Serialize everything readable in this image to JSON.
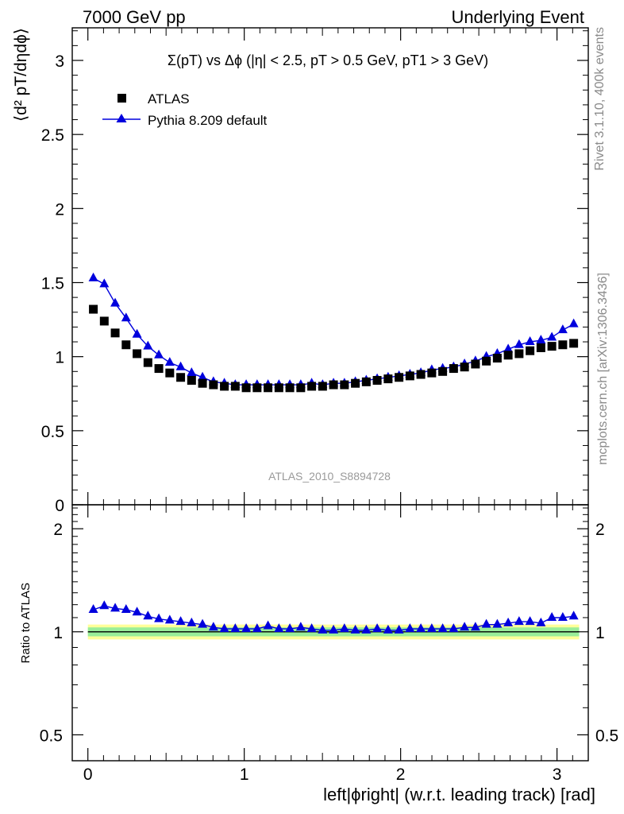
{
  "header": {
    "left": "7000 GeV pp",
    "right": "Underlying Event"
  },
  "side_text": {
    "rivet": "Rivet 3.1.10,  400k events",
    "mcplots": "mcplots.cern.ch [arXiv:1306.3436]"
  },
  "chart_data": [
    {
      "type": "scatter",
      "panel": "main",
      "title": "Σ(pT) vs Δϕ (|η| < 2.5, pT > 0.5 GeV, pT1 > 3 GeV)",
      "ylabel": "⟨d² pT/dηdϕ⟩",
      "xlabel": "",
      "watermark": "ATLAS_2010_S8894728",
      "xlim": [
        -0.1,
        3.2
      ],
      "ylim": [
        0,
        3.22
      ],
      "y_ticks": [
        0,
        0.5,
        1,
        1.5,
        2,
        2.5,
        3
      ],
      "y_tick_labels": [
        "0",
        "0.5",
        "1",
        "1.5",
        "2",
        "2.5",
        "3"
      ],
      "legend_position": "top-left",
      "series": [
        {
          "name": "ATLAS",
          "marker": "square",
          "color": "#000000",
          "x": [
            0.0349,
            0.1047,
            0.1745,
            0.2443,
            0.3142,
            0.384,
            0.4538,
            0.5236,
            0.5934,
            0.6632,
            0.733,
            0.8029,
            0.8727,
            0.9425,
            1.0123,
            1.0821,
            1.1519,
            1.2217,
            1.2915,
            1.3614,
            1.4312,
            1.501,
            1.5708,
            1.6406,
            1.7104,
            1.7802,
            1.85,
            1.9199,
            1.9897,
            2.0595,
            2.1293,
            2.1991,
            2.2689,
            2.3387,
            2.4086,
            2.4784,
            2.5482,
            2.618,
            2.6878,
            2.7576,
            2.8274,
            2.8972,
            2.9671,
            3.0369,
            3.1067
          ],
          "y": [
            1.32,
            1.24,
            1.16,
            1.08,
            1.02,
            0.96,
            0.92,
            0.89,
            0.86,
            0.84,
            0.82,
            0.81,
            0.8,
            0.8,
            0.79,
            0.79,
            0.79,
            0.79,
            0.79,
            0.79,
            0.8,
            0.8,
            0.81,
            0.81,
            0.82,
            0.83,
            0.84,
            0.85,
            0.86,
            0.87,
            0.88,
            0.89,
            0.9,
            0.92,
            0.93,
            0.95,
            0.97,
            0.99,
            1.01,
            1.02,
            1.04,
            1.06,
            1.07,
            1.08,
            1.09
          ]
        },
        {
          "name": "Pythia 8.209 default",
          "marker": "triangle",
          "color": "#0000dd",
          "x": [
            0.0349,
            0.1047,
            0.1745,
            0.2443,
            0.3142,
            0.384,
            0.4538,
            0.5236,
            0.5934,
            0.6632,
            0.733,
            0.8029,
            0.8727,
            0.9425,
            1.0123,
            1.0821,
            1.1519,
            1.2217,
            1.2915,
            1.3614,
            1.4312,
            1.501,
            1.5708,
            1.6406,
            1.7104,
            1.7802,
            1.85,
            1.9199,
            1.9897,
            2.0595,
            2.1293,
            2.1991,
            2.2689,
            2.3387,
            2.4086,
            2.4784,
            2.5482,
            2.618,
            2.6878,
            2.7576,
            2.8274,
            2.8972,
            2.9671,
            3.0369,
            3.1067
          ],
          "y": [
            1.53,
            1.49,
            1.36,
            1.26,
            1.15,
            1.07,
            1.01,
            0.96,
            0.93,
            0.89,
            0.86,
            0.83,
            0.82,
            0.81,
            0.81,
            0.81,
            0.81,
            0.81,
            0.81,
            0.81,
            0.82,
            0.81,
            0.82,
            0.82,
            0.83,
            0.84,
            0.85,
            0.86,
            0.87,
            0.88,
            0.89,
            0.91,
            0.92,
            0.93,
            0.95,
            0.97,
            1.0,
            1.02,
            1.05,
            1.08,
            1.1,
            1.11,
            1.13,
            1.18,
            1.22
          ]
        }
      ]
    },
    {
      "type": "scatter",
      "panel": "ratio",
      "ylabel": "Ratio to ATLAS",
      "xlabel": "left|ϕright| (w.r.t. leading track) [rad]",
      "xlim": [
        -0.1,
        3.2
      ],
      "ylim": [
        0.5,
        2.0
      ],
      "y_scale": "log",
      "y_ticks": [
        0.5,
        1,
        2
      ],
      "y_tick_labels": [
        "0.5",
        "1",
        "2"
      ],
      "x_ticks": [
        0,
        1,
        2,
        3
      ],
      "x_tick_labels": [
        "0",
        "1",
        "2",
        "3"
      ],
      "bands": [
        {
          "low": 0.95,
          "high": 1.05,
          "color": "#ffff99"
        },
        {
          "low": 0.97,
          "high": 1.03,
          "color": "#99ee99"
        }
      ],
      "series": [
        {
          "name": "Pythia 8.209 default",
          "marker": "triangle",
          "color": "#0000dd",
          "x": [
            0.0349,
            0.1047,
            0.1745,
            0.2443,
            0.3142,
            0.384,
            0.4538,
            0.5236,
            0.5934,
            0.6632,
            0.733,
            0.8029,
            0.8727,
            0.9425,
            1.0123,
            1.0821,
            1.1519,
            1.2217,
            1.2915,
            1.3614,
            1.4312,
            1.501,
            1.5708,
            1.6406,
            1.7104,
            1.7802,
            1.85,
            1.9199,
            1.9897,
            2.0595,
            2.1293,
            2.1991,
            2.2689,
            2.3387,
            2.4086,
            2.4784,
            2.5482,
            2.618,
            2.6878,
            2.7576,
            2.8274,
            2.8972,
            2.9671,
            3.0369,
            3.1067
          ],
          "y": [
            1.16,
            1.19,
            1.17,
            1.16,
            1.14,
            1.11,
            1.09,
            1.08,
            1.07,
            1.06,
            1.05,
            1.03,
            1.02,
            1.02,
            1.02,
            1.02,
            1.04,
            1.02,
            1.02,
            1.03,
            1.02,
            1.01,
            1.01,
            1.02,
            1.01,
            1.01,
            1.02,
            1.01,
            1.01,
            1.02,
            1.02,
            1.02,
            1.02,
            1.02,
            1.03,
            1.03,
            1.05,
            1.05,
            1.06,
            1.07,
            1.07,
            1.06,
            1.1,
            1.1,
            1.11
          ]
        }
      ]
    }
  ]
}
